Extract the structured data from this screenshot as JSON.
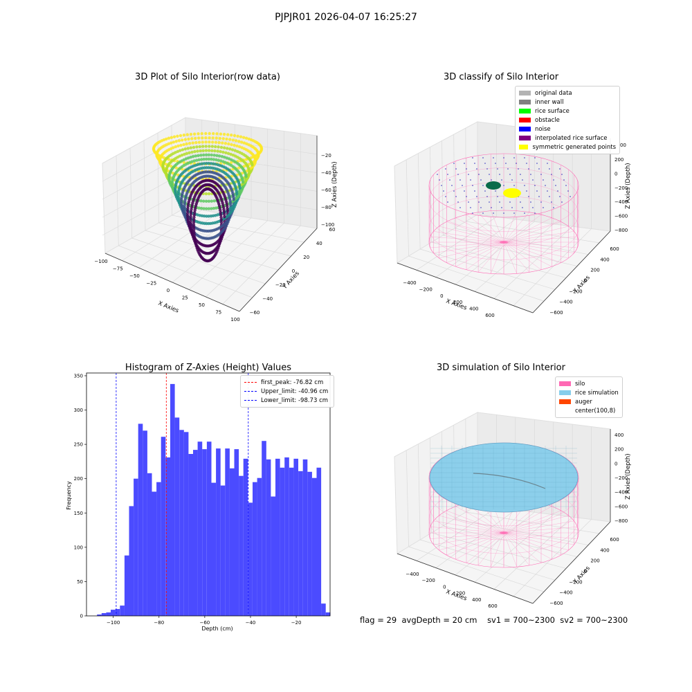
{
  "suptitle": "PJPJR01 2026-04-07 16:25:27",
  "panels": {
    "raw": {
      "title": "3D Plot of Silo Interior(row data)",
      "xlabel": "X Axies",
      "ylabel": "Y Axies",
      "zlabel": "Z Axies (Depth)",
      "xticks": [
        "−100",
        "−75",
        "−50",
        "−25",
        "0",
        "25",
        "50",
        "75",
        "100"
      ],
      "yticks": [
        "−60",
        "−40",
        "−20",
        "0",
        "20",
        "40",
        "60"
      ],
      "zticks": [
        "−20",
        "−40",
        "−60",
        "−80",
        "−100"
      ]
    },
    "classify": {
      "title": "3D classify of Silo Interior",
      "xlabel": "X Axies",
      "ylabel": "Y Axies",
      "zlabel": "Z Axies (Depth)",
      "xticks": [
        "−400",
        "−200",
        "0",
        "200",
        "400",
        "600"
      ],
      "yticks": [
        "−600",
        "−400",
        "−200",
        "0",
        "200",
        "400",
        "600"
      ],
      "zticks": [
        "200",
        "0",
        "−200",
        "−400",
        "−600",
        "−800"
      ],
      "ztick_partial": "00",
      "legend": [
        {
          "label": "original data",
          "color": "#b3b3b3"
        },
        {
          "label": "inner wall",
          "color": "#808080"
        },
        {
          "label": "rice surface",
          "color": "#00ff00"
        },
        {
          "label": "obstacle",
          "color": "#ff0000"
        },
        {
          "label": "noise",
          "color": "#0000ff"
        },
        {
          "label": "interpolated rice surface",
          "color": "#800080"
        },
        {
          "label": "symmetric generated points",
          "color": "#ffff00"
        }
      ]
    },
    "simulation": {
      "title": "3D simulation of Silo Interior",
      "xlabel": "X Axies",
      "ylabel": "Y Axies",
      "zlabel": "Z Axies (Depth)",
      "xticks": [
        "−400",
        "−200",
        "0",
        "200",
        "400",
        "600"
      ],
      "yticks": [
        "−600",
        "−400",
        "−200",
        "0",
        "200",
        "400",
        "600"
      ],
      "zticks": [
        "400",
        "200",
        "0",
        "−200",
        "−400",
        "−600",
        "−800"
      ],
      "legend": [
        {
          "label": "silo",
          "color": "#ff69b4"
        },
        {
          "label": "rice simulation",
          "color": "#87ceeb"
        },
        {
          "label": "auger",
          "color": "#ff4500"
        },
        {
          "label": "center(100,8)",
          "color": "#ffffff"
        }
      ]
    }
  },
  "chart_data": {
    "type": "bar",
    "title": "Histogram of Z-Axies (Height) Values",
    "xlabel": "Depth (cm)",
    "ylabel": "Frequency",
    "xlim": [
      -111.7,
      -5.2
    ],
    "ylim": [
      0,
      354
    ],
    "xticks": [
      -100,
      -80,
      -60,
      -40,
      -20
    ],
    "yticks": [
      0,
      50,
      100,
      150,
      200,
      250,
      300,
      350
    ],
    "bin_start": -107.1,
    "bin_width": 2.0,
    "values": [
      2,
      4,
      5,
      9,
      10,
      15,
      88,
      160,
      200,
      280,
      270,
      208,
      181,
      195,
      261,
      231,
      338,
      289,
      271,
      268,
      236,
      242,
      254,
      243,
      254,
      194,
      244,
      190,
      244,
      215,
      243,
      204,
      229,
      165,
      195,
      201,
      255,
      228,
      174,
      229,
      216,
      231,
      216,
      229,
      211,
      228,
      210,
      201,
      216,
      18,
      5
    ],
    "color": "#4b4bff",
    "vlines": [
      {
        "label": "first_peak: -76.82 cm",
        "x": -76.82,
        "color": "#ff0000"
      },
      {
        "label": "Upper_limit: -40.96 cm",
        "x": -40.96,
        "color": "#0000ff"
      },
      {
        "label": "Lower_limit: -98.73 cm",
        "x": -98.73,
        "color": "#0000ff"
      }
    ],
    "legend_loc": "upper right"
  },
  "status": {
    "flag": "flag = 29",
    "avg_depth": "avgDepth = 20 cm",
    "sv1": "sv1 = 700~2300",
    "sv2": "sv2 = 700~2300"
  }
}
